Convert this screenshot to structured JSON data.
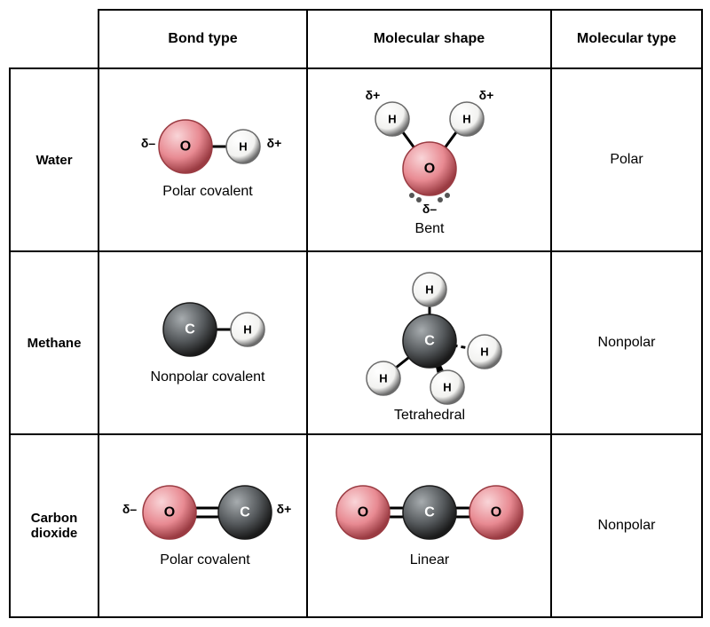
{
  "headers": {
    "bond": "Bond type",
    "shape": "Molecular shape",
    "mtype": "Molecular type"
  },
  "rows": {
    "water": {
      "name": "Water",
      "bond_caption": "Polar covalent",
      "shape_caption": "Bent",
      "mtype": "Polar"
    },
    "methane": {
      "name": "Methane",
      "bond_caption": "Nonpolar covalent",
      "shape_caption": "Tetrahedral",
      "mtype": "Nonpolar"
    },
    "co2": {
      "name": "Carbon\ndioxide",
      "bond_caption": "Polar covalent",
      "shape_caption": "Linear",
      "mtype": "Nonpolar"
    }
  },
  "labels": {
    "O": "O",
    "H": "H",
    "C": "C",
    "dplus": "δ+",
    "dminus": "δ–"
  },
  "colors": {
    "oxygen_fill": "#e88a92",
    "oxygen_stroke": "#9a3b42",
    "hydrogen_fill": "#f2f2f0",
    "hydrogen_stroke": "#6b6b6b",
    "carbon_fill": "#55595c",
    "carbon_stroke": "#1a1a1a",
    "bond": "#000000",
    "shine": "#ffffff",
    "electron": "#555555",
    "text_on_dark": "#ffffff",
    "text_on_light": "#000000",
    "delta": "#000000"
  },
  "sizes": {
    "r_large": 30,
    "r_small": 19,
    "r_electron": 3,
    "bond_w": 3,
    "font_atom_large": 16,
    "font_atom_small": 13,
    "font_delta": 14
  }
}
